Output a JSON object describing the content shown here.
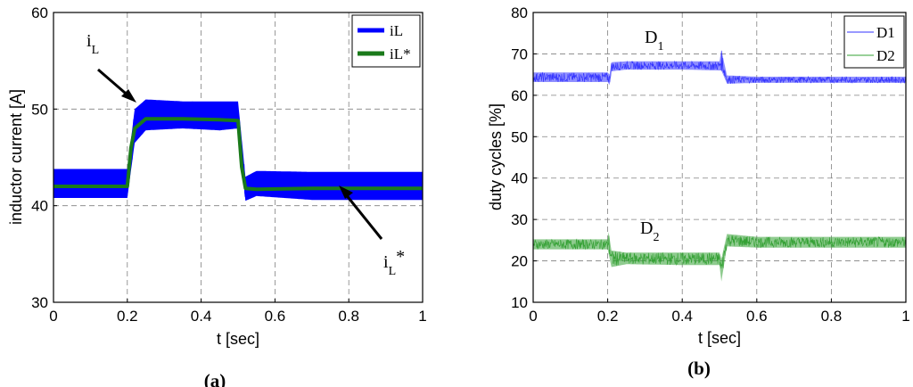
{
  "chart_data": [
    {
      "type": "line",
      "id": "a",
      "caption": "(a)",
      "xlabel": "t [sec]",
      "ylabel": "inductor current [A]",
      "xlim": [
        0,
        1
      ],
      "ylim": [
        30,
        60
      ],
      "xticks": [
        "0",
        "0.2",
        "0.4",
        "0.6",
        "0.8",
        "1"
      ],
      "yticks": [
        "30",
        "40",
        "50",
        "60"
      ],
      "grid": true,
      "legend_position": "top-right",
      "series": [
        {
          "name": "iL",
          "color": "#0000ff",
          "ripple_band": true,
          "x": [
            0,
            0.2,
            0.22,
            0.25,
            0.35,
            0.45,
            0.5,
            0.52,
            0.55,
            0.7,
            0.85,
            1.0
          ],
          "ymin": [
            40.8,
            40.8,
            46.5,
            47.8,
            48.0,
            47.8,
            48.0,
            40.5,
            41.0,
            40.6,
            40.6,
            40.6
          ],
          "ymax": [
            43.8,
            43.8,
            50.0,
            51.0,
            50.8,
            50.8,
            50.8,
            43.0,
            43.6,
            43.5,
            43.5,
            43.5
          ]
        },
        {
          "name": "iL*",
          "color": "#1a7a1a",
          "x": [
            0,
            0.2,
            0.21,
            0.22,
            0.25,
            0.35,
            0.45,
            0.5,
            0.51,
            0.52,
            0.55,
            0.7,
            0.85,
            1.0
          ],
          "y": [
            42.0,
            42.0,
            46.0,
            48.0,
            49.0,
            49.0,
            48.9,
            48.8,
            44.0,
            41.8,
            41.7,
            41.8,
            41.8,
            41.8
          ]
        }
      ],
      "annotations": [
        {
          "main": "i",
          "sub": "L",
          "sup": ""
        },
        {
          "main": "i",
          "sub": "L",
          "sup": "*"
        }
      ]
    },
    {
      "type": "line",
      "id": "b",
      "caption": "(b)",
      "xlabel": "t [sec]",
      "ylabel": "duty cycles [%]",
      "xlim": [
        0,
        1
      ],
      "ylim": [
        10,
        80
      ],
      "xticks": [
        "0",
        "0.2",
        "0.4",
        "0.6",
        "0.8",
        "1"
      ],
      "yticks": [
        "10",
        "20",
        "30",
        "40",
        "50",
        "60",
        "70",
        "80"
      ],
      "grid": true,
      "legend_position": "top-right",
      "series": [
        {
          "name": "D1",
          "color": "#3333ff",
          "ripple_band": true,
          "x": [
            0,
            0.2,
            0.205,
            0.21,
            0.25,
            0.4,
            0.5,
            0.505,
            0.52,
            0.6,
            0.8,
            1.0
          ],
          "ymin": [
            63.2,
            63.2,
            62.5,
            65.8,
            66.2,
            66.2,
            66.0,
            66.0,
            62.8,
            63.0,
            63.0,
            63.0
          ],
          "ymax": [
            65.5,
            65.5,
            65.0,
            68.0,
            68.2,
            68.2,
            68.2,
            71.0,
            64.8,
            64.5,
            64.5,
            64.5
          ]
        },
        {
          "name": "D2",
          "color": "#33a033",
          "ripple_band": true,
          "x": [
            0,
            0.2,
            0.2,
            0.21,
            0.25,
            0.4,
            0.5,
            0.505,
            0.52,
            0.6,
            0.8,
            1.0
          ],
          "ymin": [
            22.8,
            22.8,
            22.8,
            18.5,
            19.2,
            19.0,
            19.0,
            15.0,
            23.5,
            23.2,
            23.2,
            23.2
          ],
          "ymax": [
            25.2,
            25.2,
            28.5,
            22.5,
            22.0,
            22.0,
            22.0,
            20.5,
            26.5,
            25.8,
            25.8,
            25.8
          ]
        }
      ],
      "annotations": [
        {
          "main": "D",
          "sub": "1",
          "sup": ""
        },
        {
          "main": "D",
          "sub": "2",
          "sup": ""
        }
      ]
    }
  ]
}
